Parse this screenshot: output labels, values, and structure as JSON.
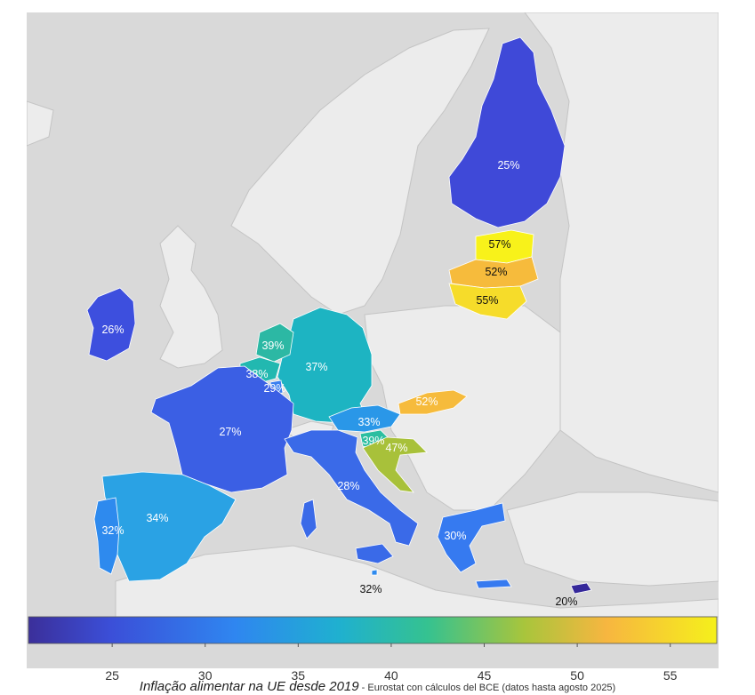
{
  "colors": {
    "sea": "#d9d9d9",
    "land": "#ececec",
    "border": "#bfbfbf",
    "scale": [
      "#3b2f9a",
      "#3b55e0",
      "#2f8ef0",
      "#1fb6c4",
      "#3cc28a",
      "#a9c53a",
      "#f7b640",
      "#f5f01b"
    ]
  },
  "countries": [
    {
      "id": "finland",
      "label": "25%",
      "value": 25,
      "fill": "#3f49d8",
      "text_color": "#ffffff"
    },
    {
      "id": "estonia",
      "label": "57%",
      "value": 57,
      "fill": "#f8f21a",
      "text_color": "#111111"
    },
    {
      "id": "latvia",
      "label": "52%",
      "value": 52,
      "fill": "#f6bb3c",
      "text_color": "#111111"
    },
    {
      "id": "lithuania",
      "label": "55%",
      "value": 55,
      "fill": "#f6dc2a",
      "text_color": "#111111"
    },
    {
      "id": "ireland",
      "label": "26%",
      "value": 26,
      "fill": "#3d4fde",
      "text_color": "#ffffff"
    },
    {
      "id": "netherlands",
      "label": "39%",
      "value": 39,
      "fill": "#2cb8a4",
      "text_color": "#ffffff"
    },
    {
      "id": "belgium",
      "label": "38%",
      "value": 38,
      "fill": "#22b8b0",
      "text_color": "#ffffff"
    },
    {
      "id": "luxembourg",
      "label": "29%",
      "value": 29,
      "fill": "#3b7ff0",
      "text_color": "#ffffff"
    },
    {
      "id": "germany",
      "label": "37%",
      "value": 37,
      "fill": "#1db4c2",
      "text_color": "#ffffff"
    },
    {
      "id": "slovakia",
      "label": "52%",
      "value": 52,
      "fill": "#f6bb3c",
      "text_color": "#ffffff"
    },
    {
      "id": "austria",
      "label": "33%",
      "value": 33,
      "fill": "#2a97e8",
      "text_color": "#ffffff"
    },
    {
      "id": "france",
      "label": "27%",
      "value": 27,
      "fill": "#3b5fe4",
      "text_color": "#ffffff"
    },
    {
      "id": "slovenia",
      "label": "39%",
      "value": 39,
      "fill": "#2cbea0",
      "text_color": "#ffffff"
    },
    {
      "id": "croatia",
      "label": "47%",
      "value": 47,
      "fill": "#a8c13a",
      "text_color": "#ffffff"
    },
    {
      "id": "italy",
      "label": "28%",
      "value": 28,
      "fill": "#3a6ae8",
      "text_color": "#ffffff"
    },
    {
      "id": "spain",
      "label": "34%",
      "value": 34,
      "fill": "#2aa2e4",
      "text_color": "#ffffff"
    },
    {
      "id": "portugal",
      "label": "32%",
      "value": 32,
      "fill": "#2e8aee",
      "text_color": "#ffffff"
    },
    {
      "id": "greece",
      "label": "30%",
      "value": 30,
      "fill": "#367af0",
      "text_color": "#ffffff"
    },
    {
      "id": "malta",
      "label": "32%",
      "value": 32,
      "fill": "#2e8aee",
      "text_color": "#111111"
    },
    {
      "id": "cyprus",
      "label": "20%",
      "value": 20,
      "fill": "#35289a",
      "text_color": "#111111"
    }
  ],
  "colorbar": {
    "min": 20.5,
    "max": 57.5,
    "ticks": [
      "25",
      "30",
      "35",
      "40",
      "45",
      "50",
      "55"
    ]
  },
  "caption": {
    "title": "Inflação alimentar na UE desde 2019",
    "source": " - Eurostat con cálculos del BCE (datos hasta agosto 2025)"
  }
}
